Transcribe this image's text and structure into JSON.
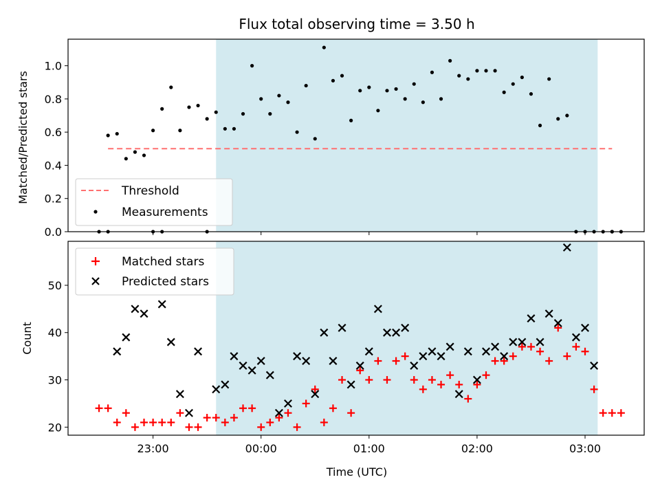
{
  "title": "Flux total observing time = 3.50 h",
  "xlabel": "Time (UTC)",
  "colors": {
    "threshold": "#ff7070",
    "measurement": "#000000",
    "matched": "#ff0000",
    "predicted": "#000000",
    "observing_span": "#d3eaf0"
  },
  "chart_data": [
    {
      "type": "scatter",
      "ylabel": "Matched/Predicted stars",
      "ylim": [
        0,
        1.16
      ],
      "yticks": [
        "0.0",
        "0.2",
        "0.4",
        "0.6",
        "0.8",
        "1.0"
      ],
      "legend": {
        "placement": "lower-left",
        "entries": [
          "Threshold",
          "Measurements"
        ]
      },
      "threshold": {
        "name": "Threshold",
        "value": 0.5,
        "x_start": "22:35",
        "x_end": "03:15"
      },
      "observing_span": {
        "start": "23:35",
        "end": "03:07"
      },
      "series": [
        {
          "name": "Measurements",
          "x": [
            "22:35",
            "22:40",
            "22:45",
            "22:50",
            "22:55",
            "23:00",
            "23:05",
            "23:10",
            "23:15",
            "23:20",
            "23:25",
            "23:30",
            "23:35",
            "23:40",
            "23:45",
            "23:50",
            "23:55",
            "00:00",
            "00:05",
            "00:10",
            "00:15",
            "00:20",
            "00:25",
            "00:30",
            "00:35",
            "00:40",
            "00:45",
            "00:50",
            "00:55",
            "01:00",
            "01:05",
            "01:10",
            "01:15",
            "01:20",
            "01:25",
            "01:30",
            "01:35",
            "01:40",
            "01:45",
            "01:50",
            "01:55",
            "02:00",
            "02:05",
            "02:10",
            "02:15",
            "02:20",
            "02:25",
            "02:30",
            "02:35",
            "02:40",
            "02:45",
            "02:50",
            "02:55",
            "03:00",
            "03:05",
            "03:10",
            "03:15"
          ],
          "y": [
            0.58,
            0.59,
            0.44,
            0.48,
            0.46,
            0.61,
            0.74,
            0.87,
            0.61,
            0.75,
            0.76,
            0.68,
            0.72,
            0.62,
            0.62,
            0.71,
            1.0,
            0.8,
            0.71,
            0.82,
            0.78,
            0.6,
            0.88,
            0.56,
            1.11,
            0.91,
            0.94,
            0.67,
            0.85,
            0.87,
            0.73,
            0.85,
            0.86,
            0.8,
            0.89,
            0.78,
            0.96,
            0.8,
            1.03,
            0.94,
            0.92,
            0.97,
            0.97,
            0.97,
            0.84,
            0.89,
            0.93,
            0.83,
            0.64,
            0.92,
            0.68,
            0.7,
            0,
            0,
            0,
            0,
            0
          ]
        }
      ],
      "zero_points_x": [
        "22:30",
        "22:35",
        "23:00",
        "23:05",
        "23:30",
        "03:15",
        "03:20"
      ]
    },
    {
      "type": "scatter",
      "ylabel": "Count",
      "ylim": [
        18.3,
        59.3
      ],
      "yticks": [
        "20",
        "30",
        "40",
        "50"
      ],
      "xticks": [
        "23:00",
        "00:00",
        "01:00",
        "02:00",
        "03:00"
      ],
      "legend": {
        "placement": "upper-left",
        "entries": [
          "Matched stars",
          "Predicted stars"
        ]
      },
      "observing_span": {
        "start": "23:35",
        "end": "03:07"
      },
      "series": [
        {
          "name": "Matched stars",
          "x": [
            "22:30",
            "22:35",
            "22:40",
            "22:45",
            "22:50",
            "22:55",
            "23:00",
            "23:05",
            "23:10",
            "23:15",
            "23:20",
            "23:25",
            "23:30",
            "23:35",
            "23:40",
            "23:45",
            "23:50",
            "23:55",
            "00:00",
            "00:05",
            "00:10",
            "00:15",
            "00:20",
            "00:25",
            "00:30",
            "00:35",
            "00:40",
            "00:45",
            "00:50",
            "00:55",
            "01:00",
            "01:05",
            "01:10",
            "01:15",
            "01:20",
            "01:25",
            "01:30",
            "01:35",
            "01:40",
            "01:45",
            "01:50",
            "01:55",
            "02:00",
            "02:05",
            "02:10",
            "02:15",
            "02:20",
            "02:25",
            "02:30",
            "02:35",
            "02:40",
            "02:45",
            "02:50",
            "02:55",
            "03:00",
            "03:05",
            "03:10",
            "03:15",
            "03:20"
          ],
          "y": [
            24,
            24,
            21,
            23,
            20,
            21,
            21,
            21,
            21,
            23,
            20,
            20,
            22,
            22,
            21,
            22,
            24,
            24,
            20,
            21,
            22,
            23,
            20,
            25,
            28,
            21,
            24,
            30,
            23,
            32,
            30,
            34,
            30,
            34,
            35,
            30,
            28,
            30,
            29,
            31,
            29,
            26,
            29,
            31,
            34,
            34,
            35,
            37,
            37,
            36,
            34,
            41,
            35,
            37,
            36,
            28,
            23,
            23,
            23
          ]
        },
        {
          "name": "Predicted stars",
          "x": [
            "22:40",
            "22:45",
            "22:50",
            "22:55",
            "23:05",
            "23:10",
            "23:15",
            "23:20",
            "23:25",
            "23:35",
            "23:40",
            "23:45",
            "23:50",
            "23:55",
            "00:00",
            "00:05",
            "00:10",
            "00:15",
            "00:20",
            "00:25",
            "00:30",
            "00:35",
            "00:40",
            "00:45",
            "00:50",
            "00:55",
            "01:00",
            "01:05",
            "01:10",
            "01:15",
            "01:20",
            "01:25",
            "01:30",
            "01:35",
            "01:40",
            "01:45",
            "01:50",
            "01:55",
            "02:00",
            "02:05",
            "02:10",
            "02:15",
            "02:20",
            "02:25",
            "02:30",
            "02:35",
            "02:40",
            "02:45",
            "02:50",
            "02:55",
            "03:00",
            "03:05"
          ],
          "y": [
            36,
            39,
            45,
            44,
            46,
            38,
            27,
            23,
            36,
            28,
            29,
            35,
            33,
            32,
            34,
            31,
            23,
            25,
            35,
            34,
            27,
            40,
            34,
            41,
            29,
            33,
            36,
            45,
            40,
            40,
            41,
            33,
            35,
            36,
            35,
            37,
            27,
            36,
            30,
            36,
            37,
            35,
            38,
            38,
            43,
            38,
            44,
            42,
            58,
            39,
            41,
            33
          ]
        }
      ]
    }
  ]
}
